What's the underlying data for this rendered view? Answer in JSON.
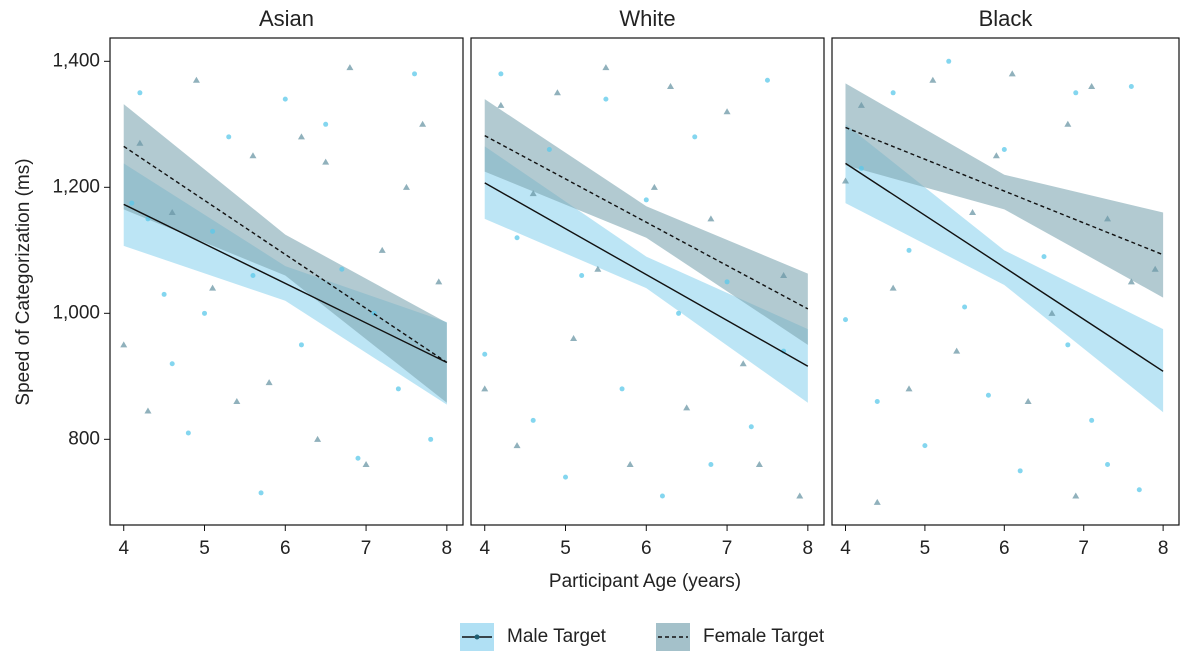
{
  "chart_data": [
    {
      "type": "scatter",
      "title": "Asian",
      "ylabel": "Speed of Categorization (ms)",
      "xlim": [
        3.83,
        8.2
      ],
      "ylim": [
        664,
        1437
      ],
      "xticks": [
        4,
        5,
        6,
        7,
        8
      ],
      "yticks": [
        {
          "value": 800,
          "label": "800"
        },
        {
          "value": 1000,
          "label": "1,000"
        },
        {
          "value": 1200,
          "label": "1,200"
        },
        {
          "value": 1400,
          "label": "1,400"
        }
      ],
      "series": [
        {
          "name": "Male Target",
          "color": "#5bc8ea",
          "band_color": "#8fd3ef",
          "marker": "circle",
          "line_style": "solid",
          "x": [
            4.1,
            4.2,
            4.3,
            4.5,
            4.6,
            4.8,
            5.0,
            5.1,
            5.3,
            5.6,
            5.7,
            6.0,
            6.2,
            6.5,
            6.7,
            6.9,
            7.1,
            7.4,
            7.6,
            7.8
          ],
          "y": [
            1175,
            1350,
            1150,
            1030,
            920,
            810,
            1000,
            1130,
            1280,
            1060,
            715,
            1340,
            950,
            1300,
            1070,
            770,
            1000,
            880,
            1380,
            800
          ],
          "line_x": [
            4,
            8
          ],
          "line_y": [
            1173,
            922
          ],
          "band_x": [
            4,
            6,
            8
          ],
          "band_low": [
            1107,
            1020,
            855
          ],
          "band_high": [
            1238,
            1075,
            986
          ]
        },
        {
          "name": "Female Target",
          "color": "#6b97a5",
          "band_color": "#7ea6b3",
          "marker": "triangle",
          "line_style": "dashed",
          "x": [
            4.0,
            4.2,
            4.3,
            4.6,
            4.9,
            5.1,
            5.4,
            5.6,
            5.8,
            6.2,
            6.4,
            6.5,
            6.8,
            7.0,
            7.2,
            7.5,
            7.7,
            7.9
          ],
          "y": [
            950,
            1270,
            845,
            1160,
            1370,
            1040,
            860,
            1250,
            890,
            1280,
            800,
            1240,
            1390,
            760,
            1100,
            1200,
            1300,
            1050
          ],
          "line_x": [
            4,
            8
          ],
          "line_y": [
            1265,
            922
          ],
          "band_x": [
            4,
            6,
            8
          ],
          "band_low": [
            1165,
            1060,
            858
          ],
          "band_high": [
            1332,
            1125,
            985
          ]
        }
      ]
    },
    {
      "type": "scatter",
      "title": "White",
      "xlabel": "Participant Age (years)",
      "xlim": [
        3.83,
        8.2
      ],
      "ylim": [
        664,
        1437
      ],
      "xticks": [
        4,
        5,
        6,
        7,
        8
      ],
      "series": [
        {
          "name": "Male Target",
          "color": "#5bc8ea",
          "band_color": "#8fd3ef",
          "marker": "circle",
          "line_style": "solid",
          "x": [
            4.0,
            4.2,
            4.4,
            4.6,
            4.8,
            5.0,
            5.2,
            5.5,
            5.7,
            6.0,
            6.2,
            6.4,
            6.6,
            6.8,
            7.0,
            7.3,
            7.5,
            7.7
          ],
          "y": [
            935,
            1380,
            1120,
            830,
            1260,
            740,
            1060,
            1340,
            880,
            1180,
            710,
            1000,
            1280,
            760,
            1050,
            820,
            1370,
            940
          ],
          "line_x": [
            4,
            8
          ],
          "line_y": [
            1207,
            916
          ],
          "band_x": [
            4,
            6,
            8
          ],
          "band_low": [
            1150,
            1040,
            858
          ],
          "band_high": [
            1265,
            1090,
            975
          ]
        },
        {
          "name": "Female Target",
          "color": "#6b97a5",
          "band_color": "#7ea6b3",
          "marker": "triangle",
          "line_style": "dashed",
          "x": [
            4.0,
            4.2,
            4.4,
            4.6,
            4.9,
            5.1,
            5.4,
            5.5,
            5.8,
            6.1,
            6.3,
            6.5,
            6.8,
            7.0,
            7.2,
            7.4,
            7.7,
            7.9
          ],
          "y": [
            880,
            1330,
            790,
            1190,
            1350,
            960,
            1070,
            1390,
            760,
            1200,
            1360,
            850,
            1150,
            1320,
            920,
            760,
            1060,
            710
          ],
          "line_x": [
            4,
            8
          ],
          "line_y": [
            1282,
            1007
          ],
          "band_x": [
            4,
            6,
            8
          ],
          "band_low": [
            1225,
            1120,
            950
          ],
          "band_high": [
            1340,
            1170,
            1063
          ]
        }
      ]
    },
    {
      "type": "scatter",
      "title": "Black",
      "xlim": [
        3.83,
        8.2
      ],
      "ylim": [
        664,
        1437
      ],
      "xticks": [
        4,
        5,
        6,
        7,
        8
      ],
      "series": [
        {
          "name": "Male Target",
          "color": "#5bc8ea",
          "band_color": "#8fd3ef",
          "marker": "circle",
          "line_style": "solid",
          "x": [
            4.0,
            4.2,
            4.4,
            4.6,
            4.8,
            5.0,
            5.3,
            5.5,
            5.8,
            6.0,
            6.2,
            6.5,
            6.8,
            6.9,
            7.1,
            7.3,
            7.6,
            7.7
          ],
          "y": [
            990,
            1230,
            860,
            1350,
            1100,
            790,
            1400,
            1010,
            870,
            1260,
            750,
            1090,
            950,
            1350,
            830,
            760,
            1360,
            720
          ],
          "line_x": [
            4,
            8
          ],
          "line_y": [
            1238,
            908
          ],
          "band_x": [
            4,
            6,
            8
          ],
          "band_low": [
            1175,
            1045,
            843
          ],
          "band_high": [
            1300,
            1100,
            975
          ]
        },
        {
          "name": "Female Target",
          "color": "#6b97a5",
          "band_color": "#7ea6b3",
          "marker": "triangle",
          "line_style": "dashed",
          "x": [
            4.0,
            4.2,
            4.4,
            4.6,
            4.8,
            5.1,
            5.4,
            5.6,
            5.9,
            6.1,
            6.3,
            6.6,
            6.8,
            6.9,
            7.1,
            7.3,
            7.6,
            7.9
          ],
          "y": [
            1210,
            1330,
            700,
            1040,
            880,
            1370,
            940,
            1160,
            1250,
            1380,
            860,
            1000,
            1300,
            710,
            1360,
            1150,
            1050,
            1070
          ],
          "line_x": [
            4,
            8
          ],
          "line_y": [
            1295,
            1093
          ],
          "band_x": [
            4,
            6,
            8
          ],
          "band_low": [
            1235,
            1165,
            1025
          ],
          "band_high": [
            1365,
            1220,
            1160
          ]
        }
      ]
    }
  ]
}
